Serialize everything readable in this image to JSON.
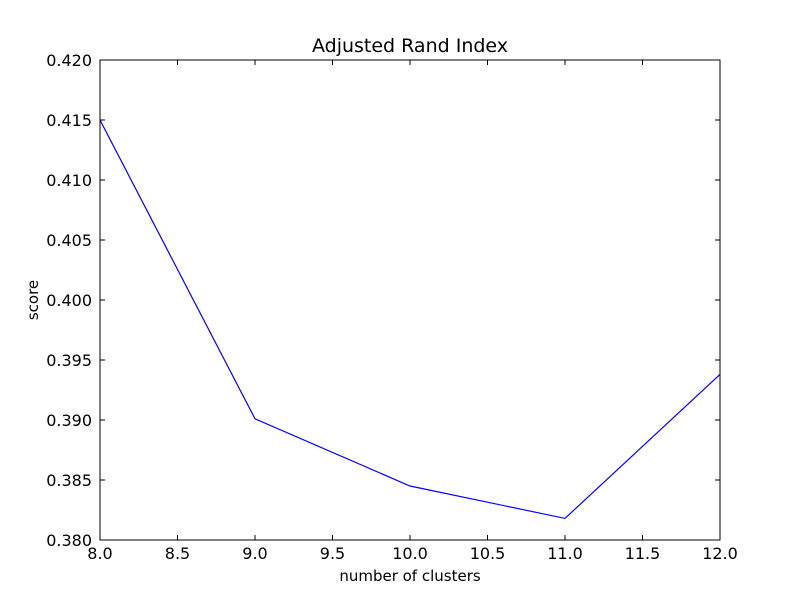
{
  "chart_data": {
    "type": "line",
    "title": "Adjusted Rand Index",
    "xlabel": "number of clusters",
    "ylabel": "score",
    "xlim": [
      8.0,
      12.0
    ],
    "ylim": [
      0.38,
      0.42
    ],
    "x_ticks": [
      "8.0",
      "8.5",
      "9.0",
      "9.5",
      "10.0",
      "10.5",
      "11.0",
      "11.5",
      "12.0"
    ],
    "y_ticks": [
      "0.380",
      "0.385",
      "0.390",
      "0.395",
      "0.400",
      "0.405",
      "0.410",
      "0.415",
      "0.420"
    ],
    "grid": false,
    "legend": "none",
    "series": [
      {
        "color": "#0000ff",
        "x": [
          8,
          9,
          10,
          11,
          12
        ],
        "y": [
          0.415,
          0.3901,
          0.3845,
          0.3818,
          0.3938
        ]
      }
    ]
  }
}
